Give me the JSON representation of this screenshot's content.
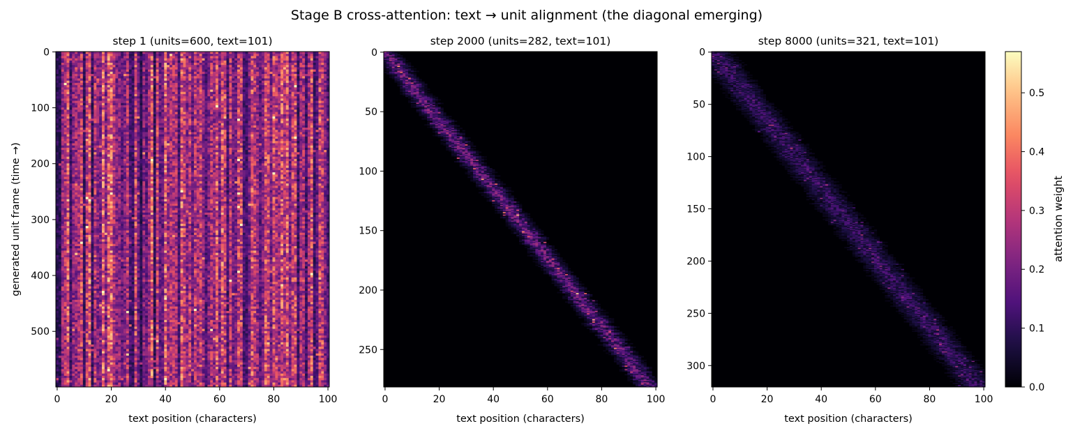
{
  "suptitle": "Stage B cross-attention: text → unit alignment (the diagonal emerging)",
  "colormap": "magma",
  "colorbar": {
    "label": "attention weight",
    "range": [
      0,
      0.57
    ],
    "ticks": [
      0.0,
      0.1,
      0.2,
      0.3,
      0.4,
      0.5
    ]
  },
  "chart_data": [
    {
      "type": "heatmap",
      "title": "step 1   (units=600, text=101)",
      "xlabel": "text position (characters)",
      "ylabel": "generated unit frame (time →)",
      "rows": 600,
      "cols": 101,
      "xticks": [
        0,
        20,
        40,
        60,
        80,
        100
      ],
      "yticks": [
        0,
        100,
        200,
        300,
        400,
        500
      ],
      "pattern": "diffuse",
      "intensity_range": [
        0.05,
        0.45
      ]
    },
    {
      "type": "heatmap",
      "title": "step 2000   (units=282, text=101)",
      "xlabel": "text position (characters)",
      "ylabel": "",
      "rows": 282,
      "cols": 101,
      "xticks": [
        0,
        20,
        40,
        60,
        80,
        100
      ],
      "yticks": [
        0,
        50,
        100,
        150,
        200,
        250
      ],
      "pattern": "diagonal",
      "diagonal_band_halfwidth_chars": 4,
      "max_weight": 0.57
    },
    {
      "type": "heatmap",
      "title": "step 8000   (units=321, text=101)",
      "xlabel": "text position (characters)",
      "ylabel": "",
      "rows": 321,
      "cols": 101,
      "xticks": [
        0,
        20,
        40,
        60,
        80,
        100
      ],
      "yticks": [
        0,
        50,
        100,
        150,
        200,
        250,
        300
      ],
      "pattern": "diagonal",
      "diagonal_band_halfwidth_chars": 6,
      "max_weight": 0.35
    }
  ]
}
